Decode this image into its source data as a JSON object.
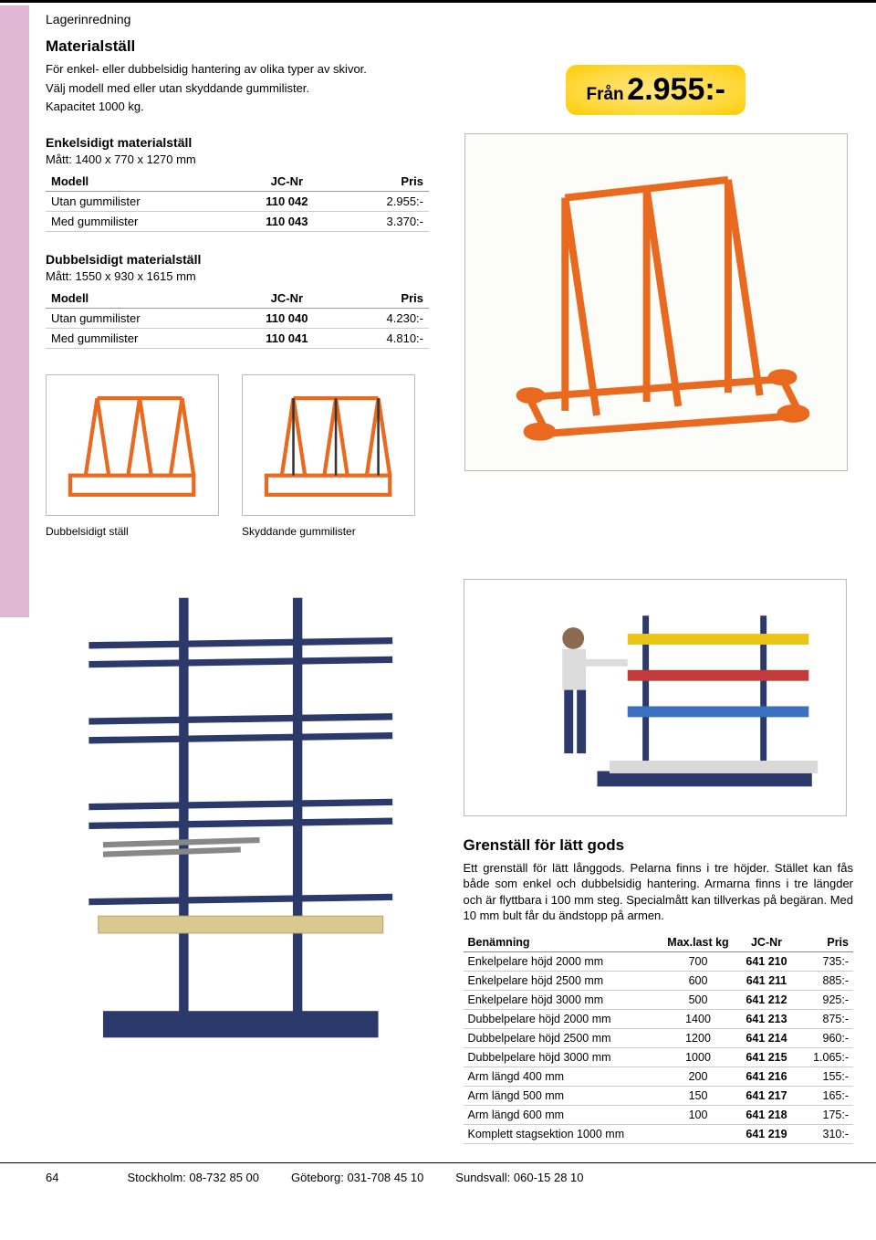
{
  "header": {
    "label": "Lagerinredning"
  },
  "intro": {
    "title": "Materialställ",
    "line1": "För enkel- eller dubbelsidig hantering av olika typer av skivor.",
    "line2": "Välj modell med eller utan skyddande gummilister.",
    "line3": "Kapacitet 1000 kg."
  },
  "price_badge": {
    "from": "Från",
    "amount": "2.955:-"
  },
  "table_headers": {
    "model": "Modell",
    "jc": "JC-Nr",
    "price": "Pris"
  },
  "section1": {
    "title": "Enkelsidigt materialställ",
    "dim": "Mått: 1400 x 770 x 1270 mm",
    "rows": [
      {
        "model": "Utan gummilister",
        "jc": "110 042",
        "price": "2.955:-"
      },
      {
        "model": "Med gummilister",
        "jc": "110 043",
        "price": "3.370:-"
      }
    ]
  },
  "section2": {
    "title": "Dubbelsidigt materialställ",
    "dim": "Mått: 1550 x 930 x 1615 mm",
    "rows": [
      {
        "model": "Utan gummilister",
        "jc": "110 040",
        "price": "4.230:-"
      },
      {
        "model": "Med gummilister",
        "jc": "110 041",
        "price": "4.810:-"
      }
    ]
  },
  "thumbs": {
    "caption1": "Dubbelsidigt ställ",
    "caption2": "Skyddande gummilister"
  },
  "lower": {
    "title": "Grenställ för lätt gods",
    "desc": "Ett grenställ för lätt långgods. Pelarna finns i tre höjder. Stället kan fås både som enkel och dubbelsidig hantering. Armarna finns i tre längder och är flyttbara i 100 mm steg. Specialmått kan tillverkas på begäran. Med 10 mm bult får du ändstopp på armen.",
    "headers": {
      "name": "Benämning",
      "max": "Max.last kg",
      "jc": "JC-Nr",
      "price": "Pris"
    },
    "rows": [
      {
        "name": "Enkelpelare höjd 2000 mm",
        "max": "700",
        "jc": "641 210",
        "price": "735:-",
        "sep": false
      },
      {
        "name": "Enkelpelare höjd 2500 mm",
        "max": "600",
        "jc": "641 211",
        "price": "885:-",
        "sep": false
      },
      {
        "name": "Enkelpelare höjd 3000 mm",
        "max": "500",
        "jc": "641 212",
        "price": "925:-",
        "sep": false
      },
      {
        "name": "Dubbelpelare höjd 2000 mm",
        "max": "1400",
        "jc": "641 213",
        "price": "875:-",
        "sep": true
      },
      {
        "name": "Dubbelpelare höjd 2500 mm",
        "max": "1200",
        "jc": "641 214",
        "price": "960:-",
        "sep": false
      },
      {
        "name": "Dubbelpelare höjd 3000 mm",
        "max": "1000",
        "jc": "641 215",
        "price": "1.065:-",
        "sep": false
      },
      {
        "name": "Arm längd 400 mm",
        "max": "200",
        "jc": "641 216",
        "price": "155:-",
        "sep": true
      },
      {
        "name": "Arm längd 500 mm",
        "max": "150",
        "jc": "641 217",
        "price": "165:-",
        "sep": false
      },
      {
        "name": "Arm längd 600 mm",
        "max": "100",
        "jc": "641 218",
        "price": "175:-",
        "sep": false
      },
      {
        "name": "Komplett stagsektion 1000 mm",
        "max": "",
        "jc": "641 219",
        "price": "310:-",
        "sep": true
      }
    ]
  },
  "footer": {
    "page": "64",
    "c1": "Stockholm: 08-732 85 00",
    "c2": "Göteborg: 031-708 45 10",
    "c3": "Sundsvall: 060-15 28 10"
  },
  "colors": {
    "orange": "#e96a1f",
    "blue": "#2b3a6b",
    "tab": "#e0b8d4"
  }
}
